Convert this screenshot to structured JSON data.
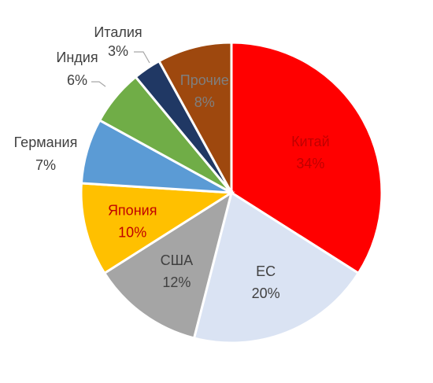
{
  "chart_data": {
    "type": "pie",
    "title": "",
    "slices": [
      {
        "label": "Китай",
        "percent_label": "34%",
        "value": 34,
        "color": "#ff0000",
        "label_color": "#c00000"
      },
      {
        "label": "ЕС",
        "percent_label": "20%",
        "value": 20,
        "color": "#dae3f3",
        "label_color": "#404040"
      },
      {
        "label": "США",
        "percent_label": "12%",
        "value": 12,
        "color": "#a5a5a5",
        "label_color": "#404040"
      },
      {
        "label": "Япония",
        "percent_label": "10%",
        "value": 10,
        "color": "#ffc000",
        "label_color": "#c00000"
      },
      {
        "label": "Германия",
        "percent_label": "7%",
        "value": 7,
        "color": "#5b9bd5",
        "label_color": "#404040"
      },
      {
        "label": "Индия",
        "percent_label": "6%",
        "value": 6,
        "color": "#70ad47",
        "label_color": "#404040"
      },
      {
        "label": "Италия",
        "percent_label": "3%",
        "value": 3,
        "color": "#203864",
        "label_color": "#404040"
      },
      {
        "label": "Прочие",
        "percent_label": "8%",
        "value": 8,
        "color": "#9e480e",
        "label_color": "#7f7f7f"
      }
    ],
    "start_angle_deg": 0,
    "direction": "clockwise",
    "slice_border_color": "#ffffff",
    "leader_line_color": "#a6a6a6"
  }
}
